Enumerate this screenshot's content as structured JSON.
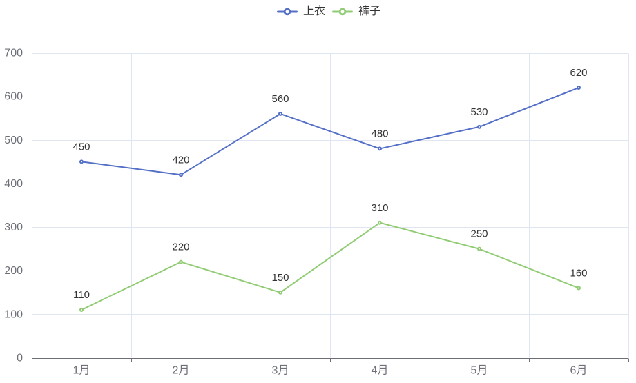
{
  "chart_data": {
    "type": "line",
    "categories": [
      "1月",
      "2月",
      "3月",
      "4月",
      "5月",
      "6月"
    ],
    "series": [
      {
        "name": "上衣",
        "color": "#5470c6",
        "values": [
          450,
          420,
          560,
          480,
          530,
          620
        ]
      },
      {
        "name": "裤子",
        "color": "#91cc75",
        "values": [
          110,
          220,
          150,
          310,
          250,
          160
        ]
      }
    ],
    "title": "",
    "xlabel": "",
    "ylabel": "",
    "ylim": [
      0,
      700
    ],
    "ytick_interval": 100,
    "grid": true,
    "legend_position": "top-center",
    "show_point_labels": true,
    "colors": {
      "grid_line": "#e0e6f1",
      "axis_line": "#6e7079",
      "axis_label": "#6e7079",
      "data_label": "#333333",
      "legend_text": "#333333",
      "background": "#ffffff"
    }
  }
}
